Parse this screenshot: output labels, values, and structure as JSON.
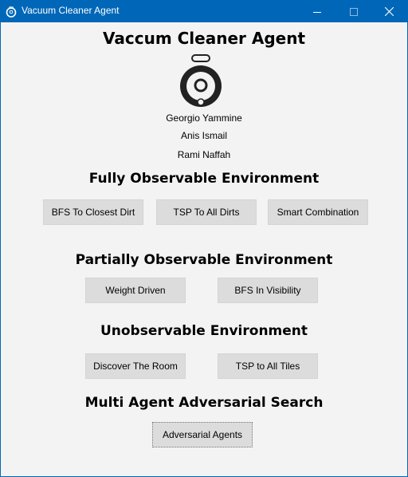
{
  "window": {
    "title": "Vacuum Cleaner Agent"
  },
  "app": {
    "heading": "Vaccum Cleaner Agent",
    "authors": [
      "Georgio Yammine",
      "Anis Ismail",
      "Rami Naffah"
    ]
  },
  "sections": {
    "fully": {
      "title": "Fully Observable Environment",
      "buttons": [
        "BFS To Closest Dirt",
        "TSP To All Dirts",
        "Smart Combination"
      ]
    },
    "partially": {
      "title": "Partially Observable Environment",
      "buttons": [
        "Weight Driven",
        "BFS In Visibility"
      ]
    },
    "unobservable": {
      "title": "Unobservable Environment",
      "buttons": [
        "Discover The Room",
        "TSP to All Tiles"
      ]
    },
    "multi": {
      "title": "Multi Agent Adversarial Search",
      "buttons": [
        "Adversarial Agents"
      ]
    }
  },
  "colors": {
    "titlebar": "#0067b8",
    "background": "#f3f3f3",
    "button": "#dcdcdc"
  },
  "icons": {
    "app": "vacuum-robot-icon",
    "minimize": "minimize-icon",
    "maximize": "maximize-icon",
    "close": "close-icon"
  }
}
